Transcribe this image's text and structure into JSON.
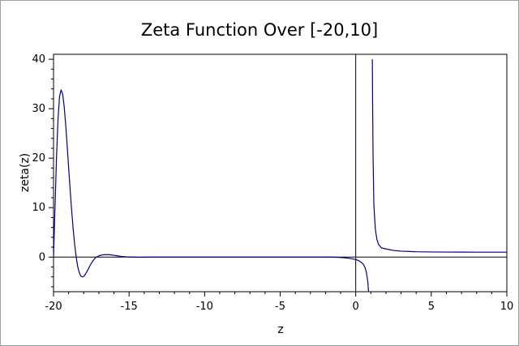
{
  "chart_data": {
    "type": "line",
    "title": "Zeta Function Over [-20,10]",
    "xlabel": "z",
    "ylabel": "zeta(z)",
    "xlim": [
      -20,
      10
    ],
    "ylim": [
      -7,
      41
    ],
    "x_ticks": [
      -20,
      -15,
      -10,
      -5,
      0,
      5,
      10
    ],
    "x_tick_labels": [
      "-20",
      "-15",
      "-10",
      "-5",
      "0",
      "5",
      "10"
    ],
    "y_ticks": [
      0,
      10,
      20,
      30,
      40
    ],
    "y_tick_labels": [
      "0",
      "10",
      "20",
      "30",
      "40"
    ],
    "grid": false,
    "reference_lines": [
      "x = 0",
      "y = 0"
    ],
    "series": [
      {
        "color": "#000080",
        "segments": [
          {
            "x": [
              -20.0,
              -19.9,
              -19.8,
              -19.7,
              -19.6,
              -19.5,
              -19.4,
              -19.3,
              -19.2,
              -19.1,
              -19.0,
              -18.9,
              -18.8,
              -18.7,
              -18.6,
              -18.5,
              -18.4,
              -18.3,
              -18.2,
              -18.1,
              -18.0,
              -17.9,
              -17.8,
              -17.7,
              -17.6,
              -17.5,
              -17.4,
              -17.3,
              -17.2,
              -17.1,
              -17.0,
              -16.8,
              -16.6,
              -16.4,
              -16.2,
              -16.0,
              -15.8,
              -15.6,
              -15.4,
              -15.2,
              -15.0,
              -14.8,
              -14.6,
              -14.4,
              -14.2,
              -14.0,
              -13.5,
              -13.0,
              -12.0,
              -11.0,
              -10.0,
              -8.0,
              -6.0,
              -4.0,
              -3.0,
              -2.0,
              -1.5,
              -1.0,
              -0.8,
              -0.6,
              -0.4,
              -0.2,
              0.0,
              0.2,
              0.4,
              0.5,
              0.6,
              0.7,
              0.8,
              0.85,
              0.9
            ],
            "y": [
              0.0,
              10.2,
              20.4,
              28.0,
              32.5,
              33.8,
              33.0,
              30.6,
              27.0,
              22.7,
              18.1,
              13.6,
              9.4,
              5.7,
              2.5,
              0.0,
              -1.9,
              -3.1,
              -3.8,
              -4.0,
              -3.9,
              -3.5,
              -3.0,
              -2.4,
              -1.8,
              -1.25,
              -0.8,
              -0.4,
              -0.1,
              0.1,
              0.25,
              0.42,
              0.5,
              0.5,
              0.45,
              0.36,
              0.27,
              0.18,
              0.1,
              0.05,
              0.02,
              0.0,
              -0.02,
              -0.03,
              -0.03,
              -0.02,
              -0.01,
              0.0,
              0.0,
              0.0,
              0.0,
              0.0,
              0.0,
              0.0,
              0.0,
              0.0,
              -0.02,
              -0.08,
              -0.12,
              -0.18,
              -0.27,
              -0.37,
              -0.5,
              -0.73,
              -1.13,
              -1.46,
              -2.0,
              -3.0,
              -5.0,
              -7.0,
              -9.0
            ]
          },
          {
            "x": [
              1.1,
              1.12,
              1.15,
              1.2,
              1.25,
              1.3,
              1.4,
              1.5,
              1.7,
              2.0,
              2.5,
              3.0,
              4.0,
              5.0,
              6.0,
              7.0,
              8.0,
              9.0,
              10.0
            ],
            "y": [
              40.0,
              30.0,
              20.0,
              10.6,
              8.0,
              5.6,
              3.6,
              2.61,
              1.87,
              1.64,
              1.34,
              1.2,
              1.08,
              1.04,
              1.02,
              1.01,
              1.0,
              1.0,
              1.0
            ]
          }
        ]
      }
    ]
  }
}
